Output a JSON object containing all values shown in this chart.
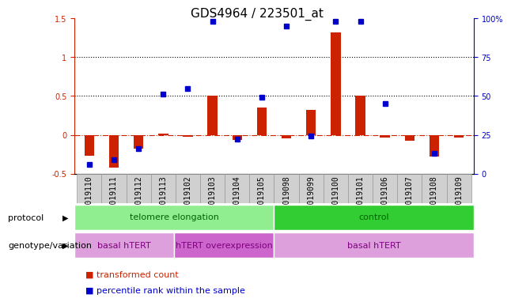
{
  "title": "GDS4964 / 223501_at",
  "samples": [
    "GSM1019110",
    "GSM1019111",
    "GSM1019112",
    "GSM1019113",
    "GSM1019102",
    "GSM1019103",
    "GSM1019104",
    "GSM1019105",
    "GSM1019098",
    "GSM1019099",
    "GSM1019100",
    "GSM1019101",
    "GSM1019106",
    "GSM1019107",
    "GSM1019108",
    "GSM1019109"
  ],
  "red_values": [
    -0.27,
    -0.42,
    -0.18,
    0.02,
    -0.03,
    0.5,
    -0.07,
    0.35,
    -0.05,
    0.32,
    1.32,
    0.5,
    -0.04,
    -0.08,
    -0.28,
    -0.04
  ],
  "blue_percentiles": [
    6,
    9,
    16,
    51,
    55,
    98,
    22,
    49,
    95,
    24,
    98,
    98,
    45,
    null,
    13,
    null
  ],
  "ylim_left": [
    -0.5,
    1.5
  ],
  "ylim_right": [
    0,
    100
  ],
  "hlines": [
    0.5,
    1.0
  ],
  "protocol_groups": [
    {
      "label": "telomere elongation",
      "start": 0,
      "end": 8,
      "color": "#90ee90"
    },
    {
      "label": "control",
      "start": 8,
      "end": 16,
      "color": "#32cd32"
    }
  ],
  "genotype_groups": [
    {
      "label": "basal hTERT",
      "start": 0,
      "end": 4,
      "color": "#dda0dd"
    },
    {
      "label": "hTERT overexpression",
      "start": 4,
      "end": 8,
      "color": "#cc66cc"
    },
    {
      "label": "basal hTERT",
      "start": 8,
      "end": 16,
      "color": "#dda0dd"
    }
  ],
  "legend_items": [
    {
      "label": "transformed count",
      "color": "#cc2200"
    },
    {
      "label": "percentile rank within the sample",
      "color": "#0000cc"
    }
  ],
  "bar_width": 0.4,
  "red_color": "#cc2200",
  "blue_color": "#0000cc",
  "grid_color": "black",
  "background_color": "#ffffff",
  "title_fontsize": 11,
  "tick_fontsize": 7,
  "label_fontsize": 8
}
